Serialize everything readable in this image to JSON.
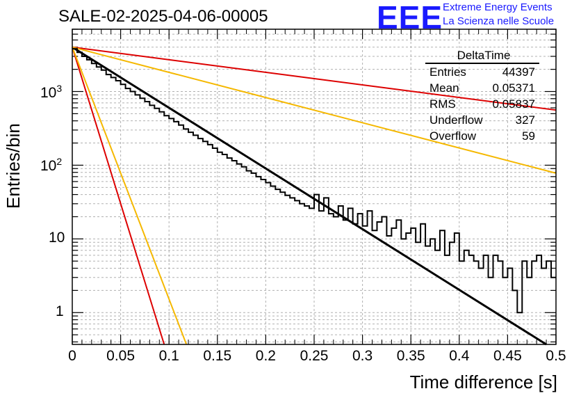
{
  "header": {
    "title": "SALE-02-2025-04-06-00005",
    "logo_mark": "EEE",
    "logo_line1": "Extreme Energy Events",
    "logo_line2": "La Scienza nelle Scuole"
  },
  "stats_box": {
    "title": "DeltaTime",
    "rows": [
      {
        "label": "Entries",
        "value": "44397"
      },
      {
        "label": "Mean",
        "value": "0.05371"
      },
      {
        "label": "RMS",
        "value": "0.05837"
      },
      {
        "label": "Underflow",
        "value": "327"
      },
      {
        "label": "Overflow",
        "value": "59"
      }
    ]
  },
  "chart_data": {
    "type": "line",
    "title": "SALE-02-2025-04-06-00005",
    "xlabel": "Time difference [s]",
    "ylabel": "Entries/bin",
    "xlim": [
      0,
      0.5
    ],
    "ylim": [
      0.37,
      7000
    ],
    "yscale": "log",
    "grid": true,
    "x_ticks": [
      "0",
      "0.05",
      "0.1",
      "0.15",
      "0.2",
      "0.25",
      "0.3",
      "0.35",
      "0.4",
      "0.45",
      "0.5"
    ],
    "y_ticks": [
      {
        "value": 1,
        "label": "1"
      },
      {
        "value": 10,
        "label": "10"
      },
      {
        "value": 100,
        "label": "10^2"
      },
      {
        "value": 1000,
        "label": "10^3"
      }
    ],
    "histogram": {
      "name": "DeltaTime",
      "bin_width": 0.005,
      "values": [
        3800,
        3400,
        3000,
        2700,
        2400,
        2150,
        1950,
        1700,
        1550,
        1400,
        1250,
        1100,
        1000,
        900,
        810,
        730,
        650,
        590,
        530,
        470,
        430,
        390,
        350,
        310,
        280,
        255,
        230,
        210,
        190,
        170,
        150,
        140,
        125,
        115,
        104,
        95,
        84,
        78,
        70,
        64,
        58,
        52,
        47,
        43,
        39,
        36,
        33,
        30,
        28,
        26,
        40,
        24,
        36,
        22,
        20,
        28,
        18,
        26,
        16,
        22,
        15,
        24,
        13,
        17,
        20,
        11,
        14,
        18,
        10,
        12,
        14,
        9,
        16,
        8,
        10,
        7,
        13,
        6,
        9,
        12,
        5,
        7,
        6,
        5,
        4,
        6,
        3,
        6,
        5,
        3,
        4,
        2,
        1,
        5,
        3,
        5,
        6,
        4,
        5,
        3
      ]
    },
    "fit_lines": [
      {
        "color": "#000000",
        "x": [
          0,
          0.49
        ],
        "y": [
          4000,
          0.37
        ]
      },
      {
        "color": "#dd0000",
        "x": [
          0,
          0.5
        ],
        "y": [
          4000,
          560
        ]
      },
      {
        "color": "#f5b800",
        "x": [
          0,
          0.5
        ],
        "y": [
          4000,
          78
        ]
      },
      {
        "color": "#dd0000",
        "x": [
          0,
          0.095
        ],
        "y": [
          4000,
          0.37
        ]
      },
      {
        "color": "#f5b800",
        "x": [
          0,
          0.118
        ],
        "y": [
          4000,
          0.37
        ]
      }
    ]
  }
}
